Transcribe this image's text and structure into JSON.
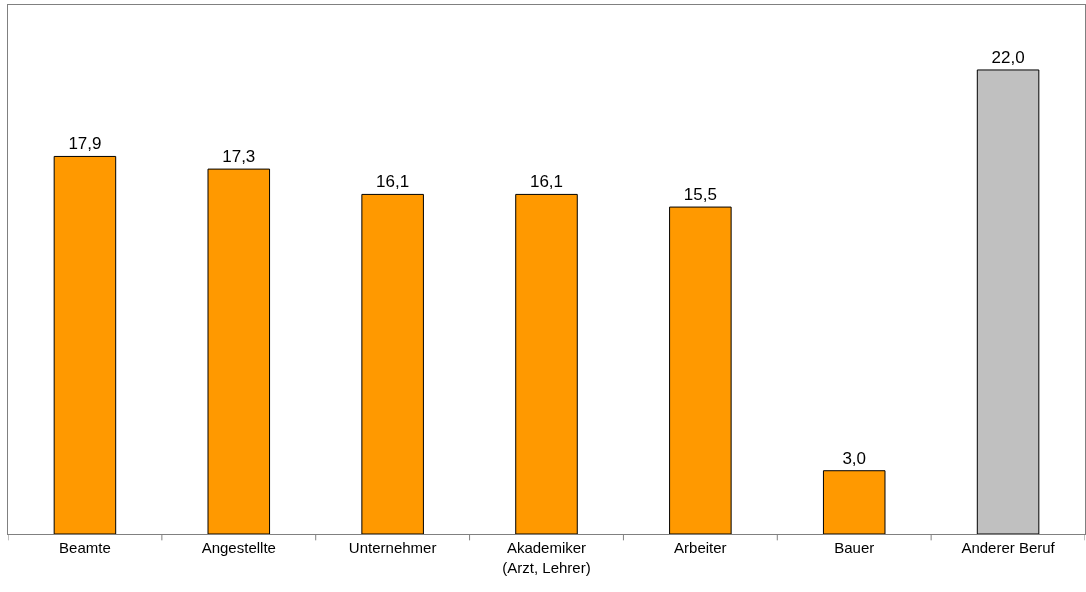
{
  "chart_data": {
    "type": "bar",
    "categories": [
      "Beamte",
      "Angestellte",
      "Unternehmer",
      "Akademiker\n(Arzt, Lehrer)",
      "Arbeiter",
      "Bauer",
      "Anderer Beruf"
    ],
    "values": [
      17.9,
      17.3,
      16.1,
      16.1,
      15.5,
      3.0,
      22.0
    ],
    "value_labels": [
      "17,9",
      "17,3",
      "16,1",
      "16,1",
      "15,5",
      "3,0",
      "22,0"
    ],
    "colors": [
      "#ff9900",
      "#ff9900",
      "#ff9900",
      "#ff9900",
      "#ff9900",
      "#ff9900",
      "#c0c0c0"
    ]
  }
}
